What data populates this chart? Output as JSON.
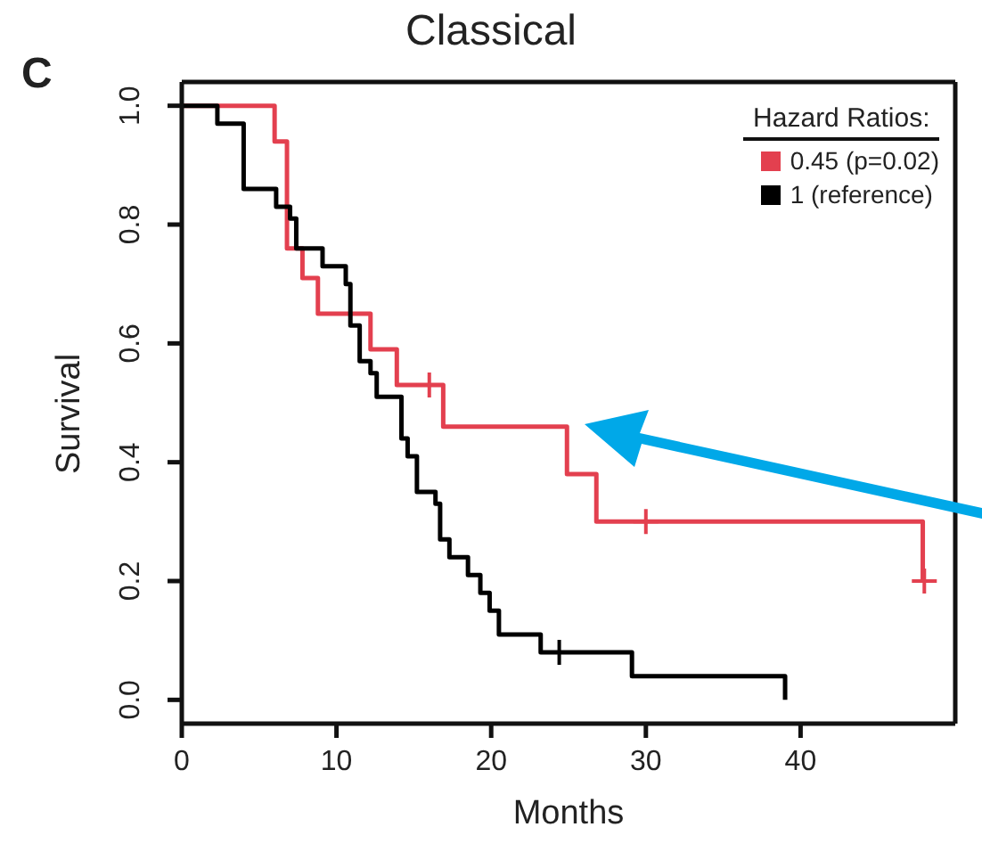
{
  "chart_data": {
    "type": "step",
    "title": "Classical",
    "xlabel": "Months",
    "ylabel": "Survival",
    "legend_title": "Hazard Ratios:",
    "annotations": [
      "C"
    ],
    "legend": "top right",
    "xlim": [
      0,
      50
    ],
    "ylim": [
      -0.04,
      1.04
    ],
    "xticks": [
      0,
      10,
      20,
      30,
      40
    ],
    "yticks": [
      {
        "value": 0,
        "label": "0.0"
      },
      {
        "value": 0.2,
        "label": "0.2"
      },
      {
        "value": 0.4,
        "label": "0.4"
      },
      {
        "value": 0.6,
        "label": "0.6"
      },
      {
        "value": 0.8,
        "label": "0.8"
      },
      {
        "value": 1,
        "label": "1.0"
      }
    ],
    "series": [
      {
        "name": "0.45 (p=0.02)",
        "color": "#e3404f",
        "x": [
          0,
          6,
          6.8,
          7.8,
          8.8,
          12.2,
          13.9,
          16.9,
          24.9,
          26.8,
          47.9
        ],
        "values": [
          1,
          0.94,
          0.76,
          0.71,
          0.65,
          0.59,
          0.53,
          0.46,
          0.38,
          0.3,
          0.2
        ]
      },
      {
        "name": "1 (reference)",
        "color": "#000000",
        "x": [
          0,
          2.3,
          4,
          6.1,
          7,
          7.4,
          9.1,
          10.6,
          10.9,
          11.5,
          12.2,
          12.6,
          14.2,
          14.6,
          15.2,
          16.4,
          16.7,
          17.3,
          18.5,
          19.3,
          19.9,
          20.5,
          23.2,
          29.1,
          39
        ],
        "values": [
          1,
          0.97,
          0.86,
          0.83,
          0.81,
          0.76,
          0.73,
          0.7,
          0.63,
          0.57,
          0.55,
          0.51,
          0.44,
          0.41,
          0.35,
          0.33,
          0.27,
          0.24,
          0.21,
          0.18,
          0.15,
          0.11,
          0.08,
          0.04,
          0
        ]
      },
      {
        "type": "scatter",
        "marker": "cross",
        "color": "#e3404f",
        "x": [
          16,
          30,
          48
        ],
        "values": [
          0.53,
          0.3,
          0.2
        ]
      },
      {
        "type": "scatter",
        "marker": "cross",
        "color": "#000000",
        "x": [
          24.4
        ],
        "values": [
          0.08
        ]
      }
    ]
  }
}
